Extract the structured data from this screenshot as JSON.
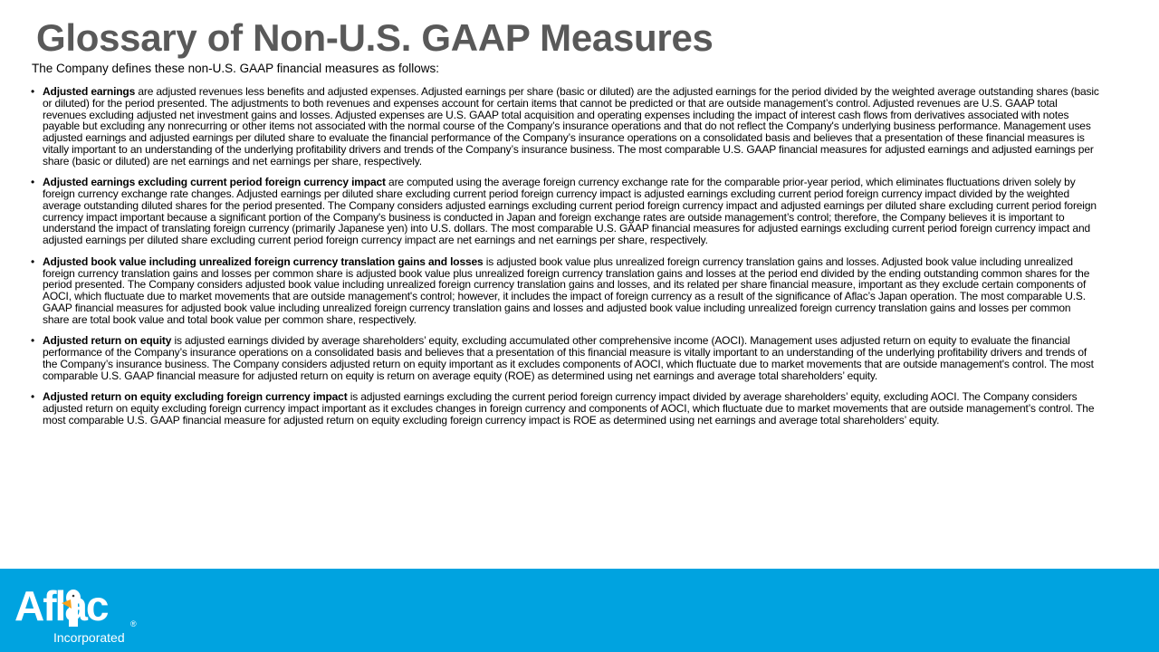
{
  "title": "Glossary of Non-U.S. GAAP Measures",
  "intro": "The Company defines these non-U.S. GAAP financial measures as follows:",
  "items": [
    {
      "term": "Adjusted earnings",
      "text": " are adjusted revenues less benefits and adjusted expenses. Adjusted earnings per share (basic or diluted) are the adjusted earnings for the period divided by the weighted average outstanding shares (basic or diluted) for the period presented. The adjustments to both revenues and expenses account for certain items that cannot be predicted or that are outside management’s control. Adjusted revenues are U.S. GAAP total revenues excluding adjusted net investment gains and losses. Adjusted expenses are U.S. GAAP total acquisition and operating expenses including the impact of interest cash flows from derivatives associated with notes payable but excluding any nonrecurring or other items not associated with the normal course of the Company’s insurance operations and that do not reflect the Company's underlying business performance. Management uses adjusted earnings and adjusted earnings per diluted share to evaluate the financial performance of the Company’s insurance operations on a consolidated basis and believes that a presentation of these financial measures is vitally important to an understanding of the underlying profitability drivers and trends of the Company’s insurance business. The most comparable U.S. GAAP financial measures for adjusted earnings and adjusted earnings per share (basic or diluted) are net earnings and net earnings per share, respectively."
    },
    {
      "term": "Adjusted earnings excluding current period foreign currency impact",
      "text": " are computed using the average foreign currency exchange rate for the comparable prior-year period, which eliminates fluctuations driven solely by foreign currency exchange rate changes. Adjusted earnings per diluted share excluding current period foreign currency impact is adjusted earnings excluding current period foreign currency impact divided by the weighted average outstanding diluted shares for the period presented. The Company considers adjusted earnings excluding current period foreign currency impact and adjusted earnings per diluted share excluding current period foreign currency impact important because a significant portion of the Company's business is conducted in Japan and foreign exchange rates are outside management’s control; therefore, the Company believes it is important to understand the impact of translating foreign currency (primarily Japanese yen) into U.S. dollars. The most comparable U.S. GAAP financial measures for adjusted earnings excluding current period foreign currency impact and adjusted earnings per diluted share excluding current period foreign currency impact are net earnings and net earnings per share, respectively."
    },
    {
      "term": "Adjusted book value including unrealized foreign currency translation gains and losses",
      "text": " is adjusted book value plus unrealized foreign currency translation gains and losses. Adjusted book value including unrealized foreign currency translation gains and losses per common share is adjusted book value plus unrealized foreign currency translation gains and losses at the period end divided by the ending outstanding common shares for the period presented. The Company considers adjusted book value including unrealized foreign currency translation gains and losses, and its related per share financial measure, important as they exclude certain components of AOCI, which fluctuate due to market movements that are outside management's control; however, it includes the impact of foreign currency as a result of the significance of Aflac’s Japan operation. The most comparable U.S. GAAP financial measures for adjusted book value including unrealized foreign currency translation gains and losses and adjusted book value including unrealized foreign currency translation gains and losses per common share are total book value and total book value per common share, respectively."
    },
    {
      "term": "Adjusted return on equity",
      "text": " is adjusted earnings divided by average shareholders’ equity, excluding accumulated other comprehensive income (AOCI). Management uses adjusted return on equity to evaluate the financial performance of the Company’s insurance operations on a consolidated basis and believes that a presentation of this financial measure is vitally important to an understanding of the underlying profitability drivers and trends of the Company’s insurance business. The Company considers adjusted return on equity important as it excludes components of AOCI, which fluctuate due to market movements that are outside management's control. The most comparable U.S. GAAP financial measure for adjusted return on equity is return on average equity (ROE) as determined using net earnings and average total shareholders’ equity."
    },
    {
      "term": "Adjusted return on equity excluding foreign currency impact",
      "text": " is adjusted earnings excluding the current period foreign currency impact divided by average shareholders’ equity, excluding AOCI. The Company considers adjusted return on equity excluding foreign currency impact important as it excludes changes in foreign currency and components of AOCI, which fluctuate due to market movements that are outside management’s control. The most comparable U.S. GAAP financial measure for adjusted return on equity excluding foreign currency impact is ROE as determined using net earnings and average total shareholders’ equity."
    }
  ],
  "footer": {
    "logo_word": "Aflac",
    "logo_sub": "Incorporated",
    "logo_reg": "®",
    "color": "#00a3e0"
  }
}
